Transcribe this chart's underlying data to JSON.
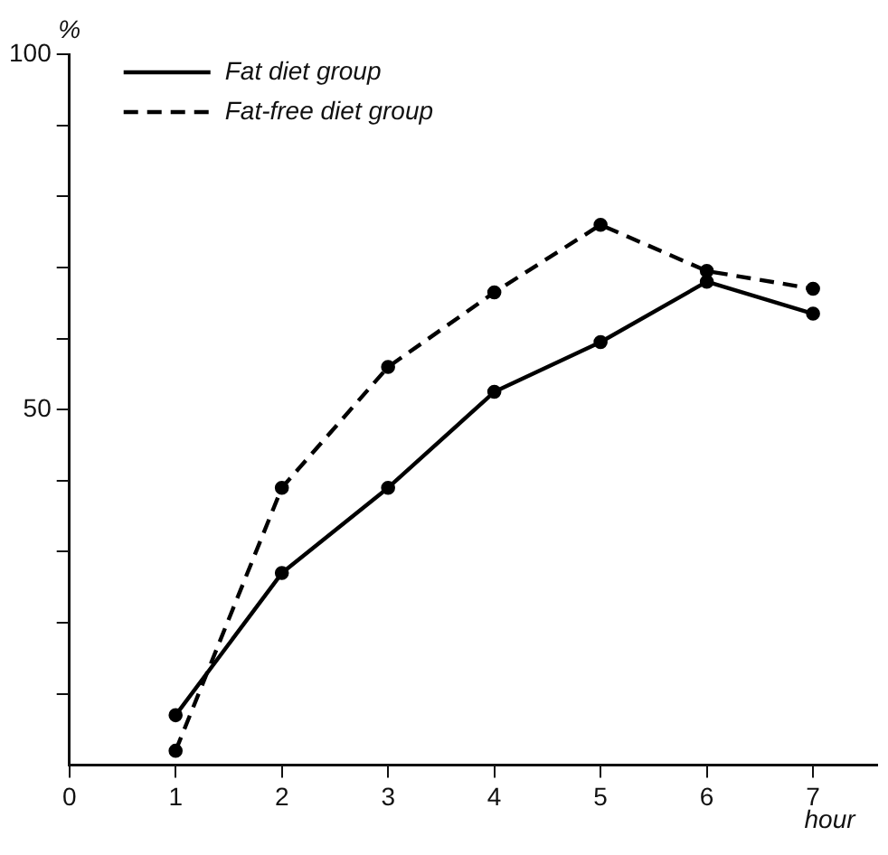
{
  "chart_data": {
    "type": "line",
    "xlabel": "hour",
    "ylabel": "%",
    "xlim": [
      0,
      7.6
    ],
    "ylim": [
      0,
      100
    ],
    "xticks": [
      0,
      1,
      2,
      3,
      4,
      5,
      6,
      7
    ],
    "yticks": [
      {
        "value": 10,
        "label": null
      },
      {
        "value": 20,
        "label": null
      },
      {
        "value": 30,
        "label": null
      },
      {
        "value": 40,
        "label": null
      },
      50,
      {
        "value": 60,
        "label": null
      },
      {
        "value": 70,
        "label": null
      },
      {
        "value": 80,
        "label": null
      },
      {
        "value": 90,
        "label": null
      },
      100
    ],
    "x": [
      1,
      2,
      3,
      4,
      5,
      6,
      7
    ],
    "series": [
      {
        "name": "Fat diet group",
        "color": "#000000",
        "line_style": "solid",
        "values": [
          7,
          27,
          39,
          52.5,
          59.5,
          68,
          63.5
        ]
      },
      {
        "name": "Fat-free diet group",
        "color": "#000000",
        "line_style": "dashed",
        "values": [
          2,
          39,
          56,
          66.5,
          76,
          69.5,
          67
        ]
      }
    ],
    "marker": "circle",
    "grid": false,
    "legend": "top left"
  }
}
